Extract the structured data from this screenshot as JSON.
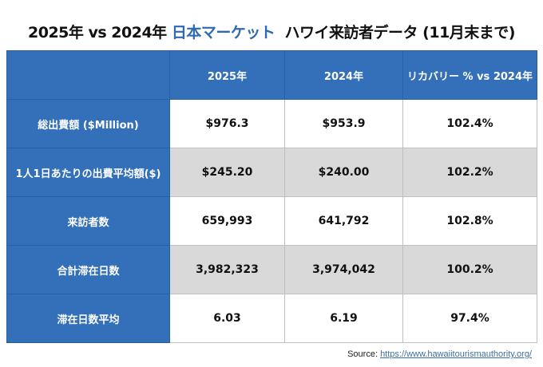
{
  "title": {
    "part1": "2025年 vs 2024年 ",
    "highlight": "日本マーケット",
    "part2": "  ハワイ来訪者データ (11月末まで)"
  },
  "header": [
    "",
    "2025年",
    "2024年",
    "リカバリー % vs 2024年"
  ],
  "rows": [
    {
      "label": "総出費額 ($Million)",
      "y2025": "$976.3",
      "y2024": "$953.9",
      "recovery": "102.4%"
    },
    {
      "label": "1人1日あたりの出費平均額($)",
      "y2025": "$245.20",
      "y2024": "$240.00",
      "recovery": "102.2%"
    },
    {
      "label": "来訪者数",
      "y2025": "659,993",
      "y2024": "641,792",
      "recovery": "102.8%"
    },
    {
      "label": "合計滞在日数",
      "y2025": "3,982,323",
      "y2024": "3,974,042",
      "recovery": "100.2%"
    },
    {
      "label": "滞在日数平均",
      "y2025": "6.03",
      "y2024": "6.19",
      "recovery": "97.4%"
    }
  ],
  "source": {
    "label": "Source: ",
    "link": "https://www.hawaiitourismauthority.org/"
  }
}
